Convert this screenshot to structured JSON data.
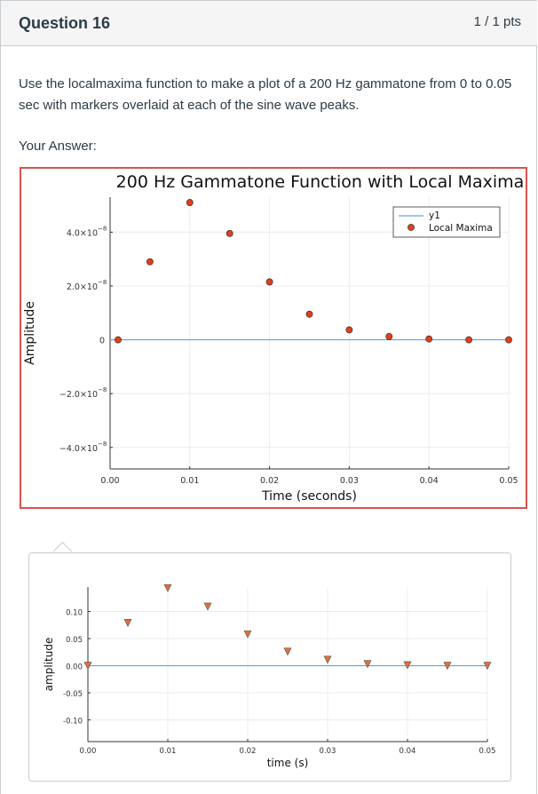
{
  "question": {
    "title": "Question 16",
    "points": "1 / 1 pts",
    "text": "Use the localmaxima function to make a plot of a 200 Hz gammatone from 0 to 0.05 sec with markers overlaid at each of the sine wave peaks.",
    "answer_label": "Your Answer:"
  },
  "colors": {
    "line": "#5aa7e0",
    "marker1": "#e0401a",
    "marker2": "#e0703a",
    "frame_border": "#d9534f"
  },
  "chart_data": [
    {
      "type": "line",
      "title": "200 Hz Gammatone Function with Local Maxima",
      "xlabel": "Time (seconds)",
      "ylabel": "Amplitude",
      "xlim": [
        0,
        0.05
      ],
      "ylim": [
        -4.8e-08,
        5.3e-08
      ],
      "xticks": [
        0.0,
        0.01,
        0.02,
        0.03,
        0.04,
        0.05
      ],
      "xtick_labels": [
        "0.00",
        "0.01",
        "0.02",
        "0.03",
        "0.04",
        "0.05"
      ],
      "yticks": [
        -4e-08,
        -2e-08,
        0,
        2e-08,
        4e-08
      ],
      "ytick_labels": [
        "−4.0×10",
        "−2.0×10",
        "0",
        "2.0×10",
        "4.0×10"
      ],
      "ytick_exponent": "−8",
      "series": [
        {
          "name": "y1",
          "kind": "line"
        },
        {
          "name": "Local Maxima",
          "kind": "markers",
          "marker": "circle",
          "x": [
            0.001,
            0.005,
            0.01,
            0.015,
            0.02,
            0.025,
            0.03,
            0.035,
            0.04,
            0.045,
            0.05
          ],
          "y": [
            0.0,
            2.9e-08,
            5.1e-08,
            3.95e-08,
            2.15e-08,
            9.5e-09,
            3.7e-09,
            1.2e-09,
            3e-10,
            0.0,
            0.0
          ]
        }
      ],
      "legend_position": "top-right",
      "grid": true
    },
    {
      "type": "line",
      "title": "",
      "xlabel": "time (s)",
      "ylabel": "amplitude",
      "xlim": [
        0,
        0.05
      ],
      "ylim": [
        -0.14,
        0.145
      ],
      "xticks": [
        0.0,
        0.01,
        0.02,
        0.03,
        0.04,
        0.05
      ],
      "xtick_labels": [
        "0.00",
        "0.01",
        "0.02",
        "0.03",
        "0.04",
        "0.05"
      ],
      "yticks": [
        -0.1,
        -0.05,
        0.0,
        0.05,
        0.1
      ],
      "ytick_labels": [
        "-0.10",
        "-0.05",
        "0.00",
        "0.05",
        "0.10"
      ],
      "series": [
        {
          "kind": "line"
        },
        {
          "kind": "markers",
          "marker": "triangle-down",
          "x": [
            0.0,
            0.005,
            0.01,
            0.015,
            0.02,
            0.025,
            0.03,
            0.035,
            0.04,
            0.045,
            0.05
          ],
          "y": [
            0.0,
            0.079,
            0.143,
            0.109,
            0.058,
            0.026,
            0.011,
            0.003,
            0.001,
            0.0,
            0.0
          ]
        }
      ],
      "grid": true
    }
  ]
}
